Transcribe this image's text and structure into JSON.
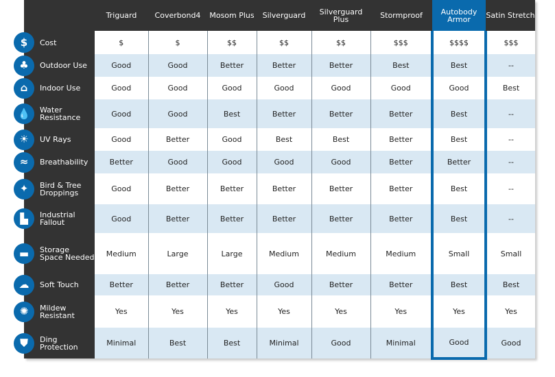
{
  "accent": "#0a6aad",
  "columns": [
    "Triguard",
    "Coverbond4",
    "Mosom Plus",
    "Silverguard",
    "Silverguard Plus",
    "Stormproof",
    "Autobody Armor",
    "Satin Stretch"
  ],
  "highlighted_column": "Autobody Armor",
  "rows": [
    {
      "label": "Cost",
      "icon": "dollar-icon",
      "values": [
        "$",
        "$",
        "$$",
        "$$",
        "$$",
        "$$$",
        "$$$$",
        "$$$"
      ]
    },
    {
      "label": "Outdoor Use",
      "icon": "trees-icon",
      "values": [
        "Good",
        "Good",
        "Better",
        "Better",
        "Better",
        "Best",
        "Best",
        "--"
      ]
    },
    {
      "label": "Indoor Use",
      "icon": "garage-icon",
      "values": [
        "Good",
        "Good",
        "Good",
        "Good",
        "Good",
        "Good",
        "Good",
        "Best"
      ]
    },
    {
      "label": "Water Resistance",
      "icon": "water-drops-icon",
      "values": [
        "Good",
        "Good",
        "Best",
        "Better",
        "Better",
        "Better",
        "Best",
        "--"
      ]
    },
    {
      "label": "UV Rays",
      "icon": "sun-icon",
      "values": [
        "Good",
        "Better",
        "Good",
        "Best",
        "Best",
        "Better",
        "Best",
        "--"
      ]
    },
    {
      "label": "Breathability",
      "icon": "air-flow-icon",
      "values": [
        "Better",
        "Good",
        "Good",
        "Good",
        "Good",
        "Better",
        "Better",
        "--"
      ]
    },
    {
      "label": "Bird & Tree Droppings",
      "icon": "leaf-icon",
      "values": [
        "Good",
        "Better",
        "Better",
        "Better",
        "Better",
        "Better",
        "Best",
        "--"
      ]
    },
    {
      "label": "Industrial Fallout",
      "icon": "factory-icon",
      "values": [
        "Good",
        "Better",
        "Better",
        "Better",
        "Better",
        "Better",
        "Best",
        "--"
      ]
    },
    {
      "label": "Storage Space Needed",
      "icon": "suitcase-icon",
      "values": [
        "Medium",
        "Large",
        "Large",
        "Medium",
        "Medium",
        "Medium",
        "Small",
        "Small"
      ]
    },
    {
      "label": "Soft Touch",
      "icon": "cloud-icon",
      "values": [
        "Better",
        "Better",
        "Better",
        "Good",
        "Better",
        "Better",
        "Best",
        "Best"
      ]
    },
    {
      "label": "Mildew Resistant",
      "icon": "mildew-icon",
      "values": [
        "Yes",
        "Yes",
        "Yes",
        "Yes",
        "Yes",
        "Yes",
        "Yes",
        "Yes"
      ]
    },
    {
      "label": "Ding Protection",
      "icon": "shield-icon",
      "values": [
        "Minimal",
        "Best",
        "Best",
        "Minimal",
        "Good",
        "Minimal",
        "Good",
        "Good"
      ]
    }
  ]
}
